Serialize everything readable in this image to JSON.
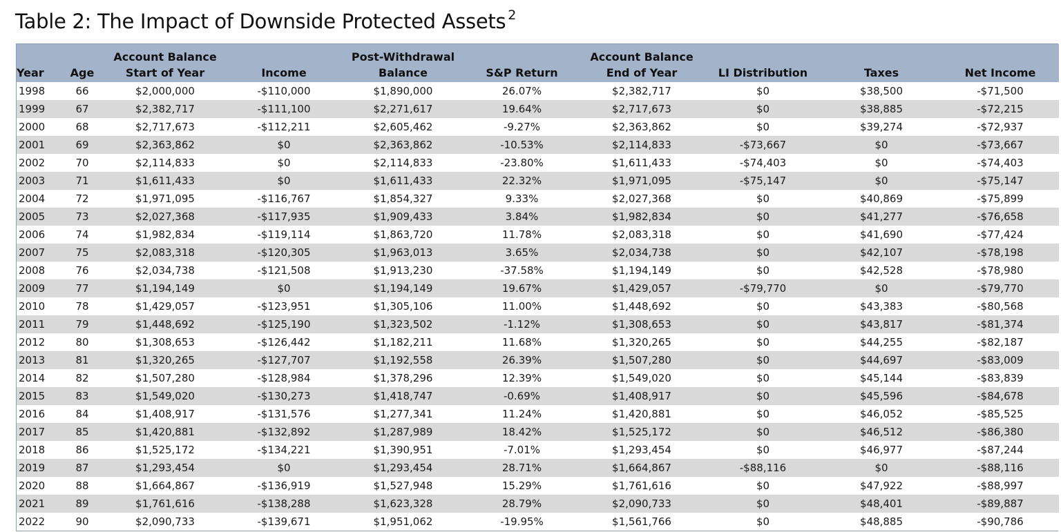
{
  "chart_data": {
    "type": "table",
    "title": "Table 2: The Impact of Downside Protected Assets",
    "title_superscript": "2",
    "colors": {
      "header_bg": "#a3b3ca",
      "stripe_bg": "#d9d9d9",
      "border": "#8a9bb5"
    },
    "header_top": [
      "",
      "",
      "Account Balance",
      "",
      "Post-Withdrawal",
      "",
      "Account Balance",
      "",
      "",
      ""
    ],
    "columns": [
      "Year",
      "Age",
      "Start of Year",
      "Income",
      "Balance",
      "S&P Return",
      "End of Year",
      "LI Distribution",
      "Taxes",
      "Net Income"
    ],
    "rows": [
      [
        "1998",
        "66",
        "$2,000,000",
        "-$110,000",
        "$1,890,000",
        "26.07%",
        "$2,382,717",
        "$0",
        "$38,500",
        "-$71,500"
      ],
      [
        "1999",
        "67",
        "$2,382,717",
        "-$111,100",
        "$2,271,617",
        "19.64%",
        "$2,717,673",
        "$0",
        "$38,885",
        "-$72,215"
      ],
      [
        "2000",
        "68",
        "$2,717,673",
        "-$112,211",
        "$2,605,462",
        "-9.27%",
        "$2,363,862",
        "$0",
        "$39,274",
        "-$72,937"
      ],
      [
        "2001",
        "69",
        "$2,363,862",
        "$0",
        "$2,363,862",
        "-10.53%",
        "$2,114,833",
        "-$73,667",
        "$0",
        "-$73,667"
      ],
      [
        "2002",
        "70",
        "$2,114,833",
        "$0",
        "$2,114,833",
        "-23.80%",
        "$1,611,433",
        "-$74,403",
        "$0",
        "-$74,403"
      ],
      [
        "2003",
        "71",
        "$1,611,433",
        "$0",
        "$1,611,433",
        "22.32%",
        "$1,971,095",
        "-$75,147",
        "$0",
        "-$75,147"
      ],
      [
        "2004",
        "72",
        "$1,971,095",
        "-$116,767",
        "$1,854,327",
        "9.33%",
        "$2,027,368",
        "$0",
        "$40,869",
        "-$75,899"
      ],
      [
        "2005",
        "73",
        "$2,027,368",
        "-$117,935",
        "$1,909,433",
        "3.84%",
        "$1,982,834",
        "$0",
        "$41,277",
        "-$76,658"
      ],
      [
        "2006",
        "74",
        "$1,982,834",
        "-$119,114",
        "$1,863,720",
        "11.78%",
        "$2,083,318",
        "$0",
        "$41,690",
        "-$77,424"
      ],
      [
        "2007",
        "75",
        "$2,083,318",
        "-$120,305",
        "$1,963,013",
        "3.65%",
        "$2,034,738",
        "$0",
        "$42,107",
        "-$78,198"
      ],
      [
        "2008",
        "76",
        "$2,034,738",
        "-$121,508",
        "$1,913,230",
        "-37.58%",
        "$1,194,149",
        "$0",
        "$42,528",
        "-$78,980"
      ],
      [
        "2009",
        "77",
        "$1,194,149",
        "$0",
        "$1,194,149",
        "19.67%",
        "$1,429,057",
        "-$79,770",
        "$0",
        "-$79,770"
      ],
      [
        "2010",
        "78",
        "$1,429,057",
        "-$123,951",
        "$1,305,106",
        "11.00%",
        "$1,448,692",
        "$0",
        "$43,383",
        "-$80,568"
      ],
      [
        "2011",
        "79",
        "$1,448,692",
        "-$125,190",
        "$1,323,502",
        "-1.12%",
        "$1,308,653",
        "$0",
        "$43,817",
        "-$81,374"
      ],
      [
        "2012",
        "80",
        "$1,308,653",
        "-$126,442",
        "$1,182,211",
        "11.68%",
        "$1,320,265",
        "$0",
        "$44,255",
        "-$82,187"
      ],
      [
        "2013",
        "81",
        "$1,320,265",
        "-$127,707",
        "$1,192,558",
        "26.39%",
        "$1,507,280",
        "$0",
        "$44,697",
        "-$83,009"
      ],
      [
        "2014",
        "82",
        "$1,507,280",
        "-$128,984",
        "$1,378,296",
        "12.39%",
        "$1,549,020",
        "$0",
        "$45,144",
        "-$83,839"
      ],
      [
        "2015",
        "83",
        "$1,549,020",
        "-$130,273",
        "$1,418,747",
        "-0.69%",
        "$1,408,917",
        "$0",
        "$45,596",
        "-$84,678"
      ],
      [
        "2016",
        "84",
        "$1,408,917",
        "-$131,576",
        "$1,277,341",
        "11.24%",
        "$1,420,881",
        "$0",
        "$46,052",
        "-$85,525"
      ],
      [
        "2017",
        "85",
        "$1,420,881",
        "-$132,892",
        "$1,287,989",
        "18.42%",
        "$1,525,172",
        "$0",
        "$46,512",
        "-$86,380"
      ],
      [
        "2018",
        "86",
        "$1,525,172",
        "-$134,221",
        "$1,390,951",
        "-7.01%",
        "$1,293,454",
        "$0",
        "$46,977",
        "-$87,244"
      ],
      [
        "2019",
        "87",
        "$1,293,454",
        "$0",
        "$1,293,454",
        "28.71%",
        "$1,664,867",
        "-$88,116",
        "$0",
        "-$88,116"
      ],
      [
        "2020",
        "88",
        "$1,664,867",
        "-$136,919",
        "$1,527,948",
        "15.29%",
        "$1,761,616",
        "$0",
        "$47,922",
        "-$88,997"
      ],
      [
        "2021",
        "89",
        "$1,761,616",
        "-$138,288",
        "$1,623,328",
        "28.79%",
        "$2,090,733",
        "$0",
        "$48,401",
        "-$89,887"
      ],
      [
        "2022",
        "90",
        "$2,090,733",
        "-$139,671",
        "$1,951,062",
        "-19.95%",
        "$1,561,766",
        "$0",
        "$48,885",
        "-$90,786"
      ]
    ]
  }
}
